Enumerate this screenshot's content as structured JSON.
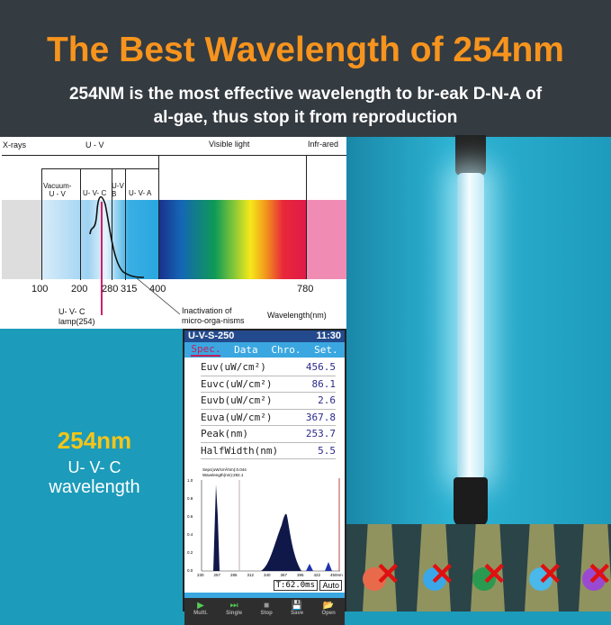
{
  "header": {
    "title": "The Best Wavelength of 254nm",
    "subtitle_line1": "254NM is the most effective wavelength to br-eak D-N-A of",
    "subtitle_line2": "al-gae, thus stop it from reproduction"
  },
  "spectrum": {
    "regions": [
      "X-rays",
      "U - V",
      "Visible light",
      "Infr-ared"
    ],
    "subbands": [
      "Vacuum-\nU - V",
      "U- V- C",
      "U-V\nB",
      "U- V- A"
    ],
    "ticks": [
      "100",
      "200",
      "280",
      "315",
      "400",
      "780"
    ],
    "lamp_label_1": "U- V- C",
    "lamp_label_2": "lamp(254)",
    "inact_1": "Inactivation of",
    "inact_2": "micro-orga-nisms",
    "axis_label": "Wavelength(nm)",
    "colors": {
      "lamp_line": "#d0206a"
    }
  },
  "left_text": {
    "value": "254nm",
    "line1": "U- V- C",
    "line2": "wavelength",
    "value_color": "#f5c518"
  },
  "device": {
    "model": "U-V-S-250",
    "time": "11:30",
    "tabs": [
      "Spec.",
      "Data",
      "Chro.",
      "Set."
    ],
    "rows": [
      {
        "label": "Euv(uW/cm²)",
        "value": "456.5"
      },
      {
        "label": "Euvc(uW/cm²)",
        "value": "86.1"
      },
      {
        "label": "Euvb(uW/cm²)",
        "value": "2.6"
      },
      {
        "label": "Euva(uW/cm²)",
        "value": "367.8"
      },
      {
        "label": "Peak(nm)",
        "value": "253.7"
      },
      {
        "label": "HalfWidth(nm)",
        "value": "5.5"
      }
    ],
    "plot_info1": "Sepc(uW/cm²/nm):0.044",
    "plot_info2": "Wavelength(nm):292.1",
    "y_ticks": [
      "1.0",
      "0.8",
      "0.6",
      "0.4",
      "0.2",
      "0.0"
    ],
    "x_ticks": [
      "230",
      "257",
      "285",
      "312",
      "340",
      "367",
      "395",
      "422",
      "450nm"
    ],
    "exposure": "T:62.0ms",
    "mode": "Auto",
    "buttons": [
      "Multi.",
      "Single",
      "Stop",
      "Save",
      "Open"
    ]
  }
}
